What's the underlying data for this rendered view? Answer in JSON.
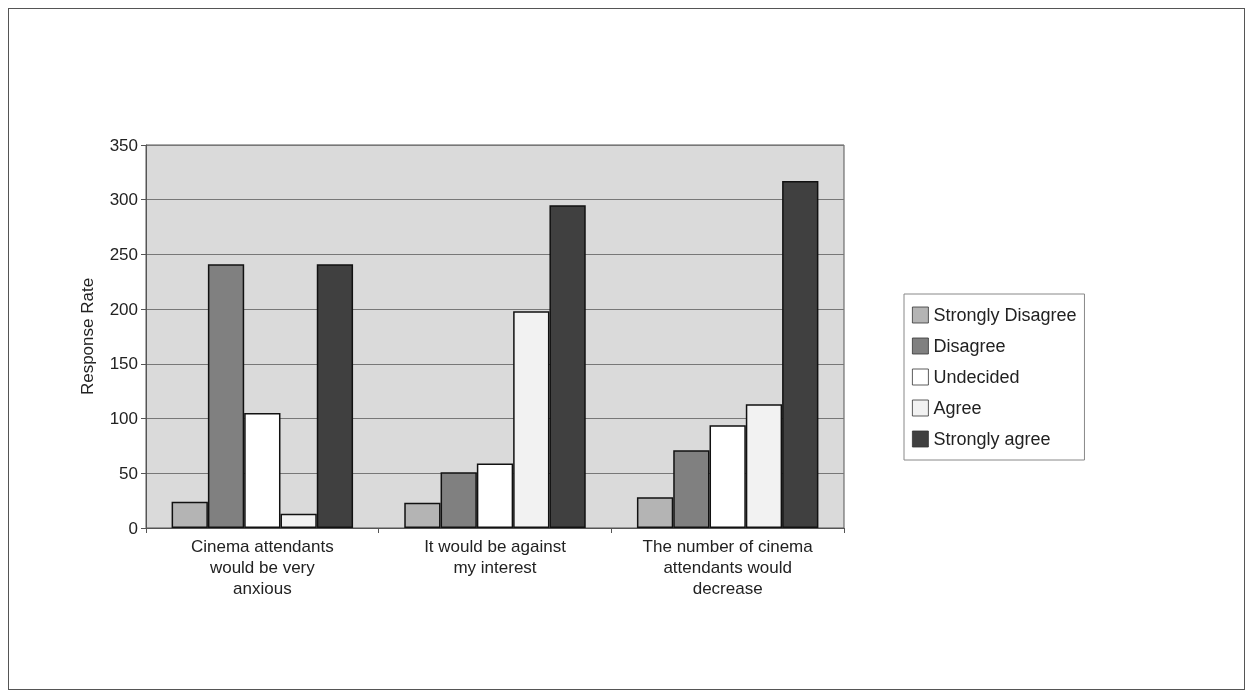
{
  "chart_data": {
    "type": "bar",
    "ylabel": "Response Rate",
    "categories": [
      "Cinema attendants would be very anxious",
      "It would be against my interest",
      "The number of cinema attendants would decrease"
    ],
    "series": [
      {
        "name": "Strongly Disagree",
        "color": "#b4b4b4",
        "values": [
          24,
          23,
          28
        ]
      },
      {
        "name": "Disagree",
        "color": "#808080",
        "values": [
          241,
          51,
          71
        ]
      },
      {
        "name": "Undecided",
        "color": "#ffffff",
        "values": [
          105,
          59,
          94
        ]
      },
      {
        "name": "Agree",
        "color": "#f2f2f2",
        "values": [
          13,
          198,
          113
        ]
      },
      {
        "name": "Strongly agree",
        "color": "#404040",
        "values": [
          241,
          295,
          317
        ]
      }
    ],
    "ylim": [
      0,
      350
    ],
    "yticks": [
      0,
      50,
      100,
      150,
      200,
      250,
      300,
      350
    ],
    "grid": "y",
    "legend": "right"
  }
}
